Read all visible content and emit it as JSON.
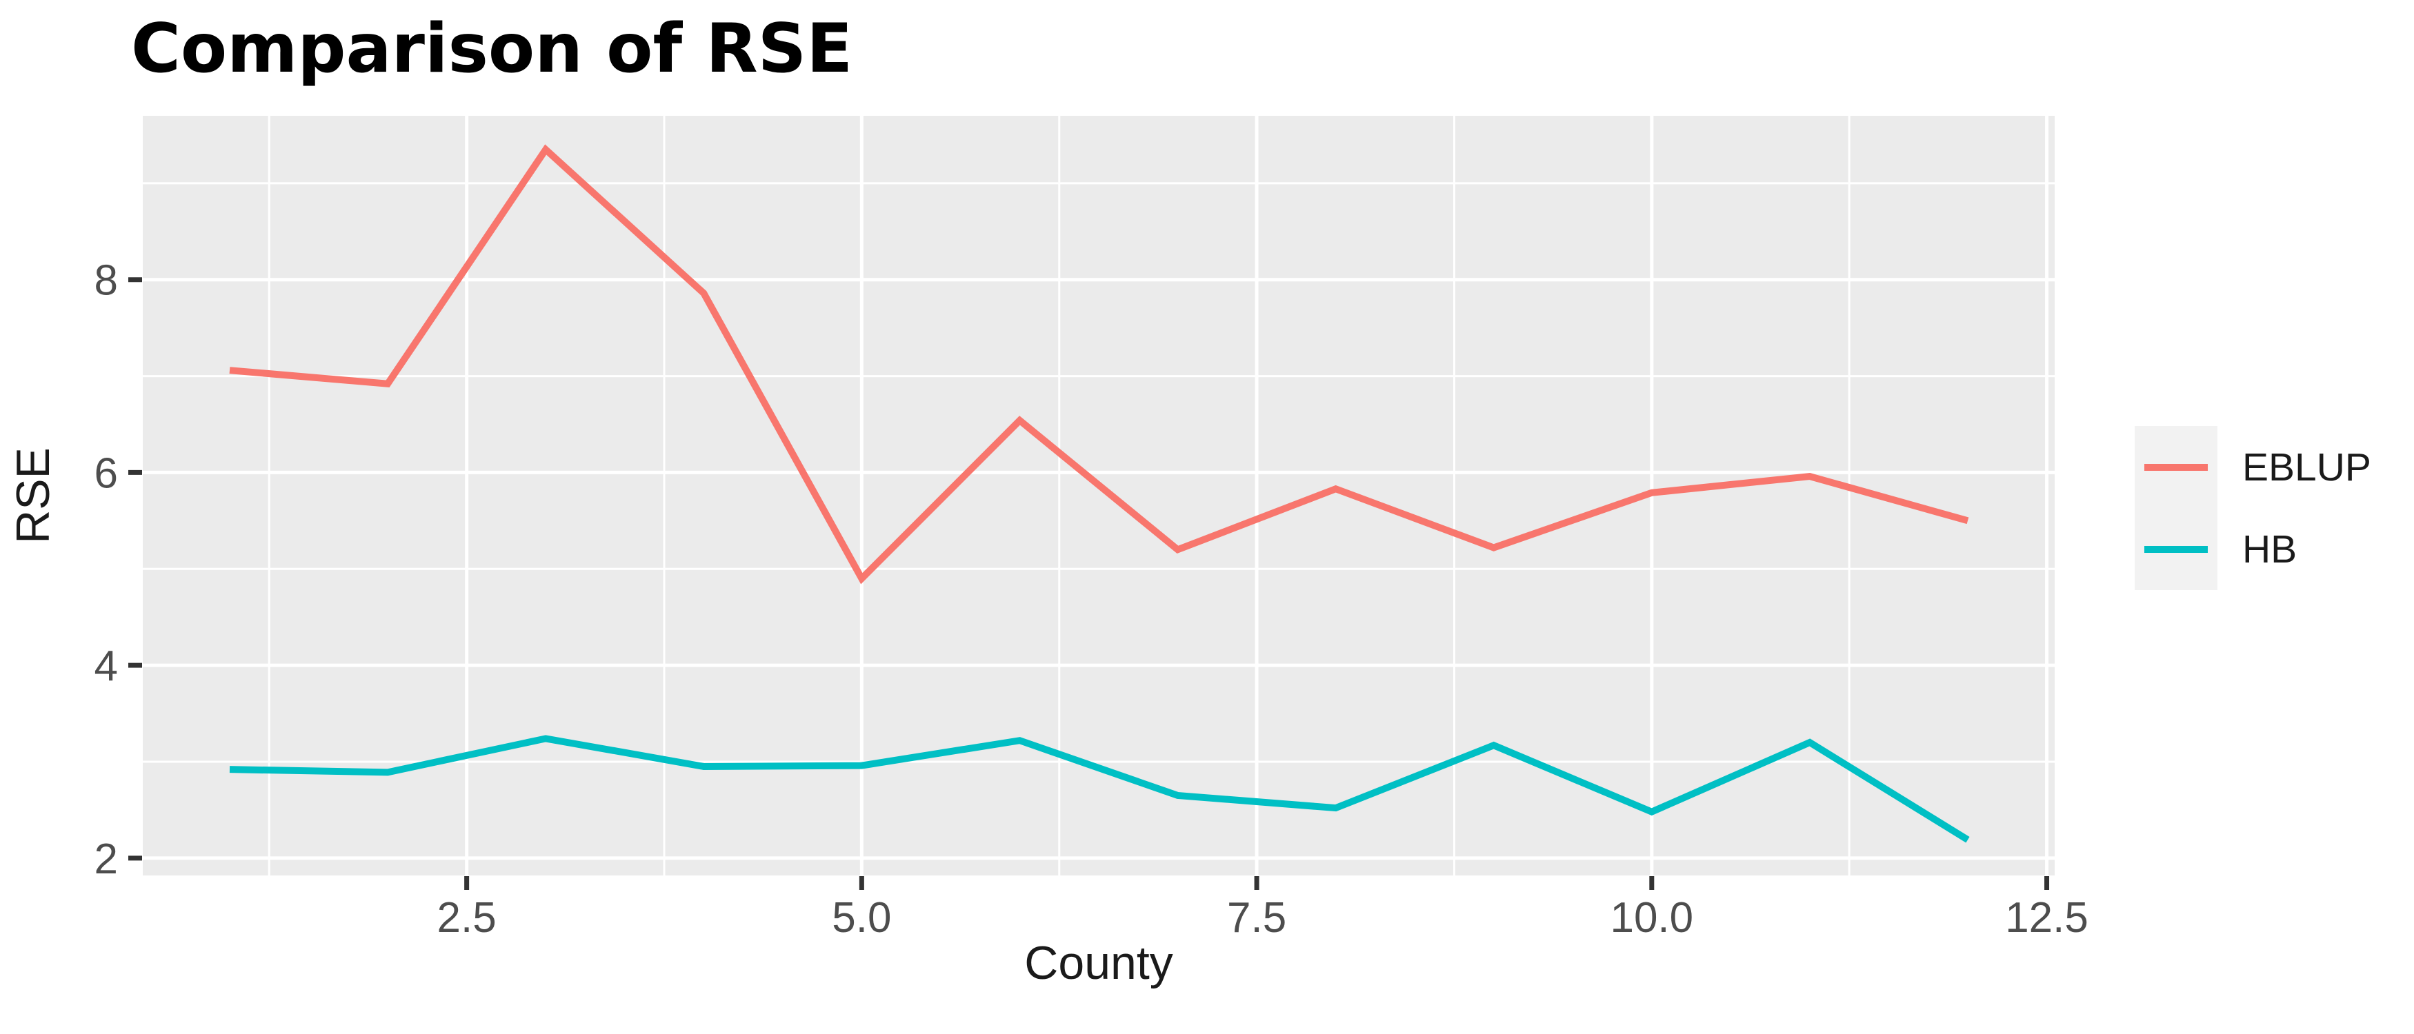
{
  "page": {
    "background": "#FFFFFF"
  },
  "title": "Comparison of RSE",
  "axes": {
    "x_label": "County",
    "y_label": "RSE"
  },
  "legend": {
    "position": "right",
    "entries": [
      {
        "label": "EBLUP",
        "color": "#F8766D"
      },
      {
        "label": "HB",
        "color": "#00BFC4"
      }
    ]
  },
  "chart_data": {
    "type": "line",
    "title": "Comparison of RSE",
    "xlabel": "County",
    "ylabel": "RSE",
    "x": [
      1,
      2,
      3,
      4,
      5,
      6,
      7,
      8,
      9,
      10,
      11,
      12
    ],
    "series": [
      {
        "name": "EBLUP",
        "color": "#F8766D",
        "values": [
          7.06,
          6.92,
          9.35,
          7.86,
          4.9,
          6.54,
          5.2,
          5.83,
          5.22,
          5.79,
          5.96,
          5.5
        ]
      },
      {
        "name": "HB",
        "color": "#00BFC4",
        "values": [
          2.92,
          2.89,
          3.24,
          2.95,
          2.96,
          3.22,
          2.65,
          2.52,
          3.17,
          2.48,
          3.2,
          2.19
        ]
      }
    ],
    "xlim": [
      0.45,
      12.55
    ],
    "ylim": [
      1.82,
      9.7
    ],
    "x_ticks": {
      "values": [
        2.5,
        5,
        7.5,
        10,
        12.5
      ],
      "labels": [
        "2.5",
        "5.0",
        "7.5",
        "10.0",
        "12.5"
      ]
    },
    "y_ticks": {
      "values": [
        2,
        4,
        6,
        8
      ],
      "labels": [
        "2",
        "4",
        "6",
        "8"
      ]
    },
    "x_minor": [
      1.25,
      3.75,
      6.25,
      8.75,
      11.25
    ],
    "y_minor": [
      3,
      5,
      7,
      9
    ],
    "grid": true,
    "legend_position": "right",
    "panel_background": "#EBEBEB",
    "grid_color": "#FFFFFF",
    "legend_key_fill": "#F2F2F2",
    "tick_color": "#333333",
    "tick_label_color": "#4D4D4D",
    "line_width": 10
  }
}
